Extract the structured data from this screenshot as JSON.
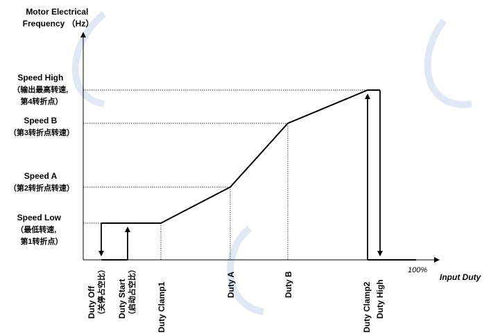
{
  "y_axis_title": [
    "Motor Electrical",
    "Frequency （Hz）"
  ],
  "x_axis_title": "Input Duty",
  "percent_label": "100%",
  "y_labels": {
    "speed_high": [
      "Speed High",
      "（输出最高转速,",
      "第4转折点）"
    ],
    "speed_b": [
      "Speed B",
      "（第3转折点转速）"
    ],
    "speed_a": [
      "Speed A",
      "（第2转折点转速）"
    ],
    "speed_low": [
      "Speed Low",
      "（最低转速,",
      "第1转折点）"
    ]
  },
  "x_labels": {
    "duty_off": [
      "Duty Off",
      "（关停占空比）"
    ],
    "duty_start": [
      "Duty Start",
      "（启动占空比）"
    ],
    "duty_clamp1": [
      "Duty Clamp1"
    ],
    "duty_a": [
      "Duty A"
    ],
    "duty_b": [
      "Duty B"
    ],
    "duty_clamp2": [
      "Duty Clamp2"
    ],
    "duty_high": [
      "Duty High"
    ]
  },
  "colors": {
    "line": "#000000",
    "guide": "#000000",
    "watermark": "#c9d6ec"
  }
}
